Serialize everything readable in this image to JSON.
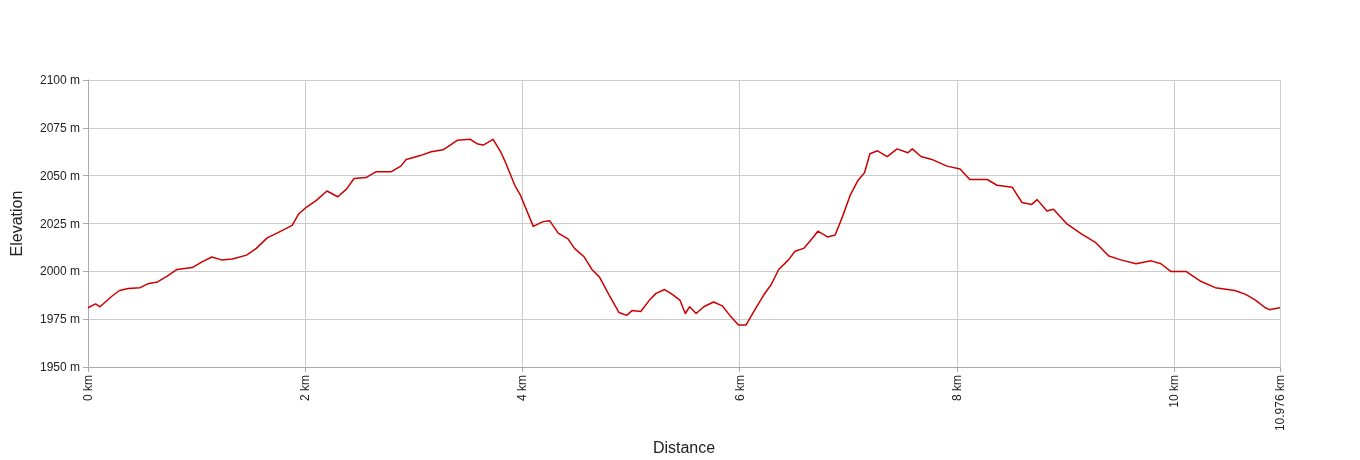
{
  "chart_data": {
    "type": "line",
    "xlabel": "Distance",
    "ylabel": "Elevation",
    "xlim": [
      0,
      10.976
    ],
    "ylim": [
      1950,
      2100
    ],
    "xticks": [
      {
        "value": 0,
        "label": "0 km"
      },
      {
        "value": 2,
        "label": "2 km"
      },
      {
        "value": 4,
        "label": "4 km"
      },
      {
        "value": 6,
        "label": "6 km"
      },
      {
        "value": 8,
        "label": "8 km"
      },
      {
        "value": 10,
        "label": "10 km"
      },
      {
        "value": 10.976,
        "label": "10.976 km"
      }
    ],
    "yticks": [
      {
        "value": 1950,
        "label": "1950 m"
      },
      {
        "value": 1975,
        "label": "1975 m"
      },
      {
        "value": 2000,
        "label": "2000 m"
      },
      {
        "value": 2025,
        "label": "2025 m"
      },
      {
        "value": 2050,
        "label": "2050 m"
      },
      {
        "value": 2075,
        "label": "2075 m"
      },
      {
        "value": 2100,
        "label": "2100 m"
      }
    ],
    "grid": true,
    "marker": "none",
    "line_style": "solid",
    "x": [
      0,
      0.07,
      0.11,
      0.22,
      0.29,
      0.37,
      0.48,
      0.55,
      0.64,
      0.73,
      0.82,
      0.96,
      1.05,
      1.14,
      1.23,
      1.33,
      1.46,
      1.55,
      1.65,
      1.74,
      1.88,
      1.94,
      2.01,
      2.1,
      2.2,
      2.3,
      2.38,
      2.45,
      2.56,
      2.65,
      2.79,
      2.88,
      2.93,
      3.06,
      3.16,
      3.27,
      3.4,
      3.52,
      3.59,
      3.64,
      3.73,
      3.8,
      3.84,
      3.93,
      3.98,
      4.1,
      4.19,
      4.25,
      4.33,
      4.42,
      4.48,
      4.57,
      4.64,
      4.71,
      4.8,
      4.89,
      4.96,
      5.01,
      5.09,
      5.17,
      5.23,
      5.31,
      5.38,
      5.45,
      5.5,
      5.54,
      5.6,
      5.67,
      5.76,
      5.84,
      5.91,
      5.99,
      6.06,
      6.13,
      6.22,
      6.29,
      6.36,
      6.45,
      6.51,
      6.59,
      6.68,
      6.72,
      6.81,
      6.88,
      6.95,
      7.02,
      7.09,
      7.15,
      7.2,
      7.27,
      7.36,
      7.45,
      7.55,
      7.59,
      7.67,
      7.77,
      7.91,
      8.03,
      8.12,
      8.28,
      8.37,
      8.51,
      8.6,
      8.69,
      8.74,
      8.83,
      8.89,
      9.01,
      9.15,
      9.28,
      9.4,
      9.51,
      9.65,
      9.79,
      9.88,
      9.97,
      10.11,
      10.24,
      10.38,
      10.56,
      10.66,
      10.75,
      10.84,
      10.88,
      10.976
    ],
    "series": [
      {
        "color": "#cc0000",
        "values": [
          1981,
          1983,
          1981.5,
          1987,
          1990,
          1991,
          1991.5,
          1993.5,
          1994.5,
          1997.5,
          2001,
          2002,
          2005,
          2007.5,
          2006,
          2006.5,
          2008.5,
          2012,
          2017.5,
          2020,
          2024,
          2030,
          2033.5,
          2037,
          2042,
          2039,
          2043,
          2048.5,
          2049,
          2052,
          2052,
          2055,
          2058.5,
          2060.5,
          2062.5,
          2063.5,
          2068.5,
          2069,
          2066.5,
          2066,
          2069,
          2062.5,
          2057.5,
          2045,
          2040,
          2023.5,
          2026,
          2026.5,
          2020,
          2017,
          2012,
          2007.5,
          2001,
          1997,
          1987.5,
          1978.5,
          1977,
          1979.5,
          1979,
          1985,
          1988.5,
          1990.5,
          1988,
          1985,
          1978,
          1981.5,
          1978,
          1981.5,
          1984,
          1982,
          1977,
          1972,
          1972,
          1979,
          1987.5,
          1993,
          2001,
          2006,
          2010.5,
          2012,
          2018,
          2021,
          2018,
          2019,
          2029,
          2040,
          2047.5,
          2051.5,
          2061.5,
          2063,
          2060,
          2064,
          2062,
          2064,
          2060,
          2058.5,
          2055,
          2053.5,
          2048,
          2048,
          2045,
          2044,
          2036,
          2035,
          2037.5,
          2031.5,
          2032.5,
          2025,
          2019.5,
          2015,
          2008,
          2006,
          2004,
          2005.5,
          2004,
          2000,
          2000,
          1995,
          1991.5,
          1990,
          1988,
          1985,
          1981,
          1980,
          1981
        ]
      }
    ]
  }
}
